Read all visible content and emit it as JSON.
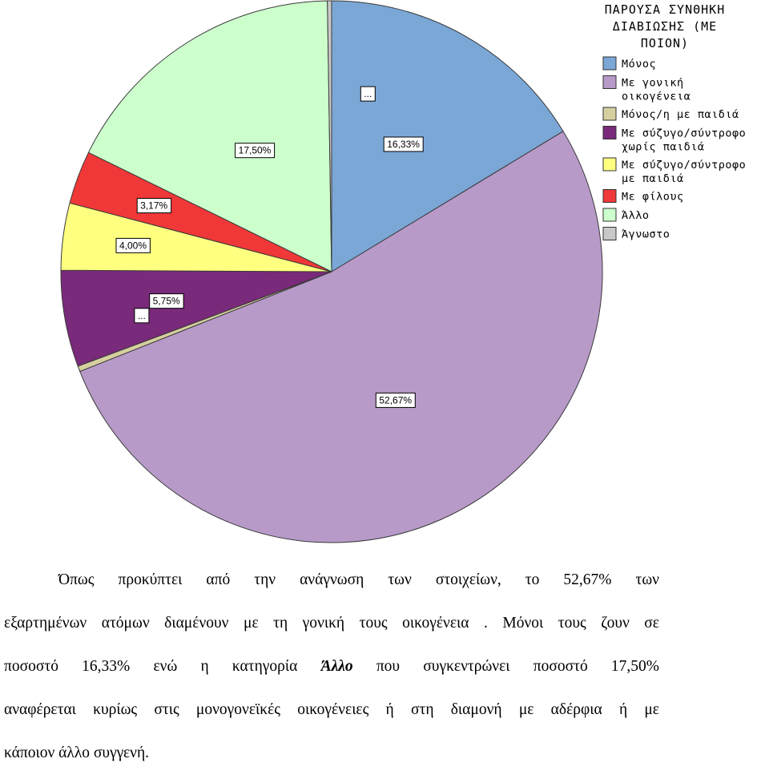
{
  "chart_data": {
    "type": "pie",
    "title": "ΠΑΡΟΥΣΑ ΣΥΝΘΗΚΗ ΔΙΑΒΙΩΣΗΣ (ΜΕ ΠΟΙΟΝ)",
    "legend_position": "top-right",
    "start_angle_deg": 0,
    "direction": "clockwise",
    "slices": [
      {
        "name": "Μόνος",
        "value": 16.33,
        "label": "16,33%",
        "color": "#7ba7d6"
      },
      {
        "name": "Με γονική οικογένεια",
        "value": 52.67,
        "label": "52,67%",
        "color": "#b89ac9"
      },
      {
        "name": "Μόνος/η με παιδιά",
        "value": 0.33,
        "label": "...",
        "color": "#d6d0a0"
      },
      {
        "name": "Με σύζυγο/σύντροφο χωρίς παιδιά",
        "value": 5.75,
        "label": "5,75%",
        "color": "#7a2a7a"
      },
      {
        "name": "Με σύζυγο/σύντροφο με παιδιά",
        "value": 4.0,
        "label": "4,00%",
        "color": "#ffff80"
      },
      {
        "name": "Με φίλους",
        "value": 3.17,
        "label": "3,17%",
        "color": "#f03838"
      },
      {
        "name": "Άλλο",
        "value": 17.5,
        "label": "17,50%",
        "color": "#ccffcc"
      },
      {
        "name": "Άγνωστο",
        "value": 0.25,
        "label": "...",
        "color": "#c8c8c8"
      }
    ]
  },
  "legend": {
    "title_lines": [
      "ΠΑΡΟΥΣΑ ΣΥΝΘΗΚΗ",
      "ΔΙΑΒΙΩΣΗΣ (ΜΕ",
      "ΠΟΙΟΝ)"
    ],
    "items": [
      {
        "lines": [
          "Μόνος"
        ],
        "color": "#7ba7d6"
      },
      {
        "lines": [
          "Με γονική",
          "οικογένεια"
        ],
        "color": "#b89ac9"
      },
      {
        "lines": [
          "Μόνος/η με παιδιά"
        ],
        "color": "#d6d0a0"
      },
      {
        "lines": [
          "Με σύζυγο/σύντροφο",
          "χωρίς παιδιά"
        ],
        "color": "#7a2a7a"
      },
      {
        "lines": [
          "Με σύζυγο/σύντροφο",
          "με παιδιά"
        ],
        "color": "#ffff80"
      },
      {
        "lines": [
          "Με φίλους"
        ],
        "color": "#f03838"
      },
      {
        "lines": [
          "Άλλο"
        ],
        "color": "#ccffcc"
      },
      {
        "lines": [
          "Άγνωστο"
        ],
        "color": "#c8c8c8"
      }
    ]
  },
  "text": {
    "line1": "Όπως προκύπτει από την ανάγνωση των στοιχείων, το 52,67% των",
    "line2": "εξαρτημένων ατόμων διαμένουν με τη γονική τους οικογένεια . Μόνοι τους ζουν σε",
    "line3_a": "ποσοστό 16,33% ενώ η κατηγορία ",
    "line3_italic": "Άλλο",
    "line3_b": " που συγκεντρώνει ποσοστό 17,50%",
    "line4": "αναφέρεται κυρίως στις μονογονεϊκές οικογένειες ή στη διαμονή με αδέρφια ή με",
    "line5": "κάποιον άλλο συγγενή."
  }
}
